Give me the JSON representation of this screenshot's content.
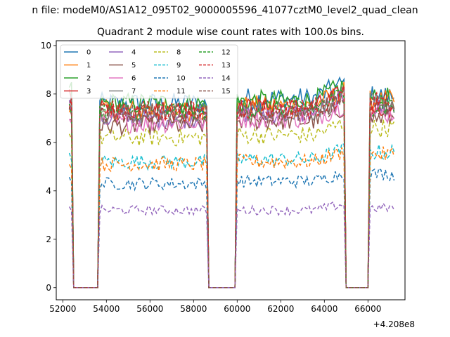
{
  "chart_data": {
    "type": "line",
    "suptitle": "n file: modeM0/AS1A12_095T02_9000005596_41077cztM0_level2_quad_clean",
    "title": "Quadrant 2 module wise count rates with 100.0s bins.",
    "xlabel": "",
    "ylabel": "",
    "x_offset_label": "+4.208e8",
    "xlim": [
      51700,
      67700
    ],
    "ylim": [
      -0.5,
      10.2
    ],
    "x_ticks": [
      52000,
      54000,
      56000,
      58000,
      60000,
      62000,
      64000,
      66000
    ],
    "x_tick_labels": [
      "52000",
      "54000",
      "56000",
      "58000",
      "60000",
      "62000",
      "64000",
      "66000"
    ],
    "y_ticks": [
      0,
      2,
      4,
      6,
      8,
      10
    ],
    "y_tick_labels": [
      "0",
      "2",
      "4",
      "6",
      "8",
      "10"
    ],
    "legend_position": "top-left",
    "time_bins": {
      "start": 52300,
      "step": 100,
      "count": 150,
      "gaps": [
        [
          52500,
          53600
        ],
        [
          58700,
          59900
        ],
        [
          65000,
          66000
        ]
      ],
      "end": 67200
    },
    "series": [
      {
        "name": "0",
        "color": "#1f77b4",
        "style": "solid",
        "seg_levels": [
          8.0,
          7.6,
          7.8,
          7.9
        ]
      },
      {
        "name": "1",
        "color": "#ff7f0e",
        "style": "solid",
        "seg_levels": [
          7.7,
          7.3,
          7.5,
          7.7
        ]
      },
      {
        "name": "2",
        "color": "#2ca02c",
        "style": "solid",
        "seg_levels": [
          8.1,
          7.6,
          7.7,
          7.8
        ]
      },
      {
        "name": "3",
        "color": "#d62728",
        "style": "solid",
        "seg_levels": [
          7.8,
          7.3,
          7.4,
          7.5
        ]
      },
      {
        "name": "4",
        "color": "#9467bd",
        "style": "solid",
        "seg_levels": [
          7.4,
          7.0,
          7.2,
          7.4
        ]
      },
      {
        "name": "5",
        "color": "#8c564b",
        "style": "solid",
        "seg_levels": [
          7.0,
          6.7,
          6.9,
          7.0
        ]
      },
      {
        "name": "6",
        "color": "#e377c2",
        "style": "solid",
        "seg_levels": [
          7.2,
          6.8,
          7.0,
          7.2
        ]
      },
      {
        "name": "7",
        "color": "#7f7f7f",
        "style": "solid",
        "seg_levels": [
          7.7,
          7.2,
          7.3,
          7.6
        ]
      },
      {
        "name": "8",
        "color": "#bcbd22",
        "style": "dashed",
        "seg_levels": [
          6.3,
          6.2,
          6.3,
          6.6
        ]
      },
      {
        "name": "9",
        "color": "#17becf",
        "style": "dashed",
        "seg_levels": [
          5.3,
          5.2,
          5.3,
          5.6
        ]
      },
      {
        "name": "10",
        "color": "#1f77b4",
        "style": "dashed",
        "seg_levels": [
          4.4,
          4.3,
          4.4,
          4.7
        ]
      },
      {
        "name": "11",
        "color": "#ff7f0e",
        "style": "dashed",
        "seg_levels": [
          5.0,
          5.1,
          5.2,
          5.5
        ]
      },
      {
        "name": "12",
        "color": "#2ca02c",
        "style": "dashed",
        "seg_levels": [
          7.6,
          7.3,
          7.4,
          7.5
        ]
      },
      {
        "name": "13",
        "color": "#d62728",
        "style": "dashed",
        "seg_levels": [
          7.5,
          7.3,
          7.4,
          7.6
        ]
      },
      {
        "name": "14",
        "color": "#9467bd",
        "style": "dashed",
        "seg_levels": [
          3.2,
          3.2,
          3.2,
          3.3
        ]
      },
      {
        "name": "15",
        "color": "#8c564b",
        "style": "dashed",
        "seg_levels": [
          7.1,
          7.2,
          7.2,
          7.4
        ]
      }
    ]
  }
}
